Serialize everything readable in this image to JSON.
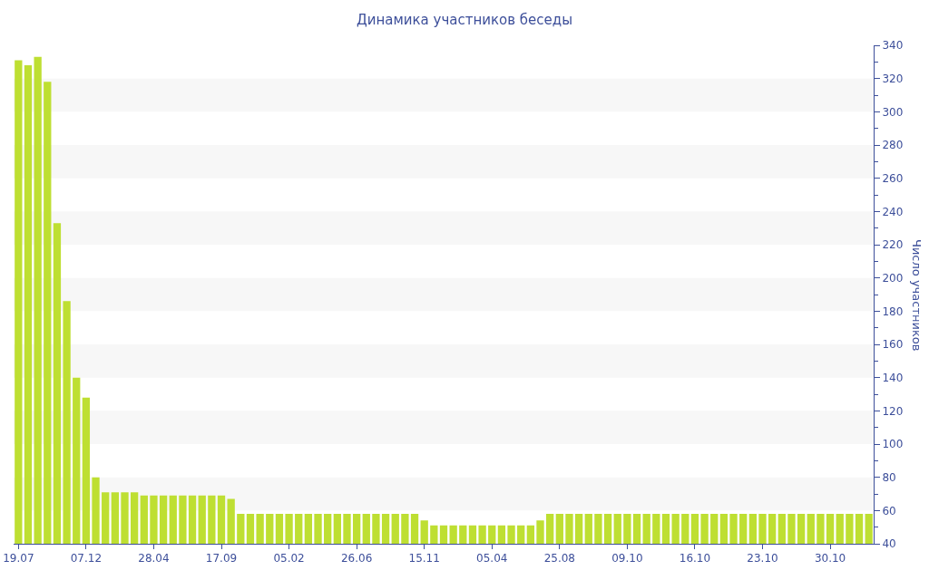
{
  "chart_data": {
    "type": "bar",
    "title": "Динамика участников беседы",
    "ylabel": "Число участников",
    "categories": [
      "19.07",
      null,
      null,
      null,
      null,
      null,
      null,
      "07.12",
      null,
      null,
      null,
      null,
      null,
      null,
      "28.04",
      null,
      null,
      null,
      null,
      null,
      null,
      "17.09",
      null,
      null,
      null,
      null,
      null,
      null,
      "05.02",
      null,
      null,
      null,
      null,
      null,
      null,
      "26.06",
      null,
      null,
      null,
      null,
      null,
      null,
      "15.11",
      null,
      null,
      null,
      null,
      null,
      null,
      "05.04",
      null,
      null,
      null,
      null,
      null,
      null,
      "25.08",
      null,
      null,
      null,
      null,
      null,
      null,
      "09.10",
      null,
      null,
      null,
      null,
      null,
      null,
      "16.10",
      null,
      null,
      null,
      null,
      null,
      null,
      "23.10",
      null,
      null,
      null,
      null,
      null,
      null,
      "30.10",
      null,
      null,
      null,
      null
    ],
    "values": [
      331,
      328,
      333,
      318,
      233,
      186,
      140,
      128,
      80,
      71,
      71,
      71,
      71,
      69,
      69,
      69,
      69,
      69,
      69,
      69,
      69,
      69,
      67,
      58,
      58,
      58,
      58,
      58,
      58,
      58,
      58,
      58,
      58,
      58,
      58,
      58,
      58,
      58,
      58,
      58,
      58,
      58,
      54,
      51,
      51,
      51,
      51,
      51,
      51,
      51,
      51,
      51,
      51,
      51,
      54,
      58,
      58,
      58,
      58,
      58,
      58,
      58,
      58,
      58,
      58,
      58,
      58,
      58,
      58,
      58,
      58,
      58,
      58,
      58,
      58,
      58,
      58,
      58,
      58,
      58,
      58,
      58,
      58,
      58,
      58,
      58,
      58,
      58,
      58
    ],
    "color": "#bedf32",
    "ylim": [
      40,
      340
    ],
    "yticks": [
      40,
      60,
      80,
      100,
      120,
      140,
      160,
      180,
      200,
      220,
      240,
      260,
      280,
      300,
      320,
      340
    ],
    "grid": false,
    "legend": false,
    "bands": [
      {
        "axis": "y",
        "from": 60,
        "to": 80,
        "color": "#f7f7f7"
      },
      {
        "axis": "y",
        "from": 100,
        "to": 120,
        "color": "#f7f7f7"
      },
      {
        "axis": "y",
        "from": 140,
        "to": 160,
        "color": "#f7f7f7"
      },
      {
        "axis": "y",
        "from": 180,
        "to": 200,
        "color": "#f7f7f7"
      },
      {
        "axis": "y",
        "from": 220,
        "to": 240,
        "color": "#f7f7f7"
      },
      {
        "axis": "y",
        "from": 260,
        "to": 280,
        "color": "#f7f7f7"
      },
      {
        "axis": "y",
        "from": 300,
        "to": 320,
        "color": "#f7f7f7"
      }
    ]
  }
}
